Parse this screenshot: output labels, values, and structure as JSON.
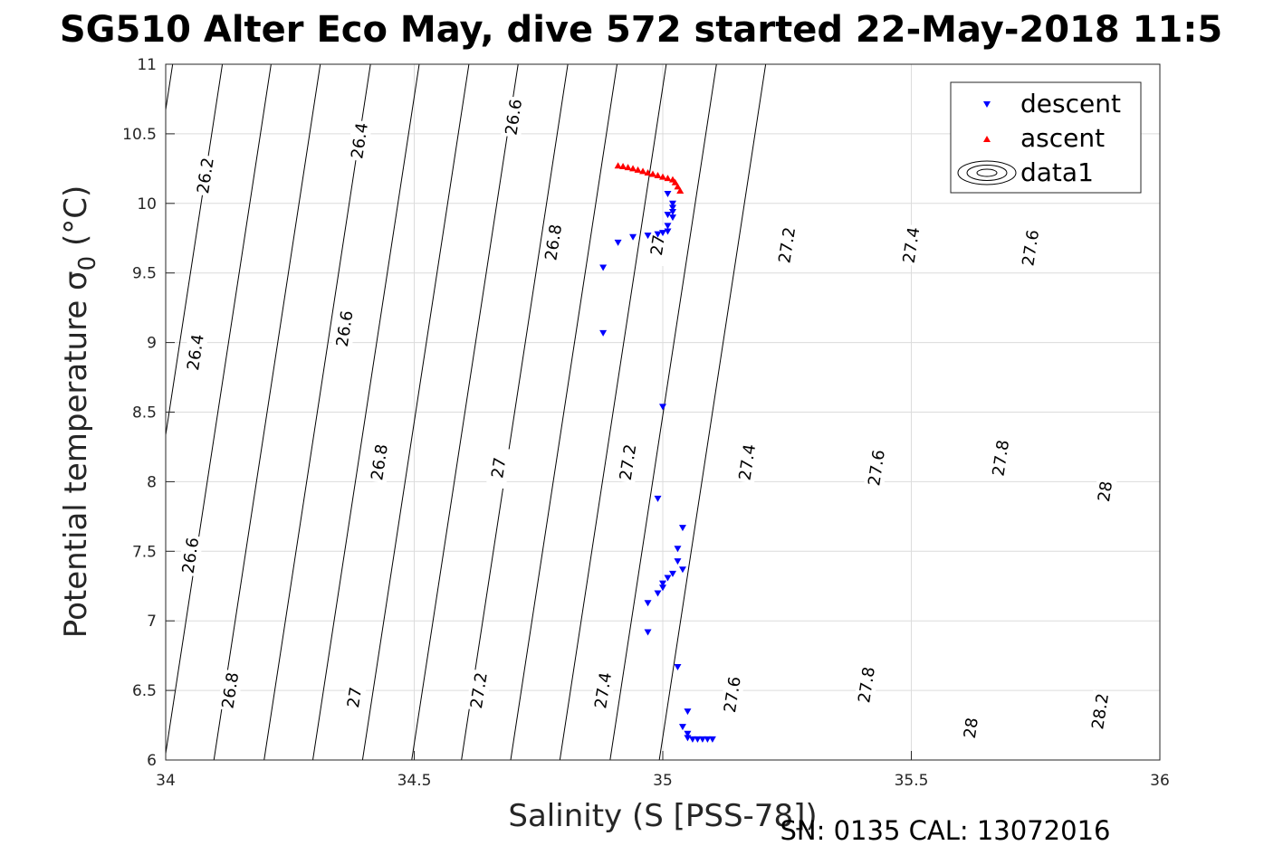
{
  "title": "SG510 Alter Eco May, dive 572 started 22-May-2018 11:5",
  "footer": "SN: 0135  CAL: 13072016",
  "chart_data": {
    "type": "scatter",
    "xlabel": "Salinity (S [PSS-78])",
    "ylabel_main": "Potential temperature σ",
    "ylabel_sub": "0",
    "ylabel_unit": " (°C)",
    "xlim": [
      34,
      36
    ],
    "ylim": [
      6,
      11
    ],
    "xticks": [
      34,
      34.5,
      35,
      35.5,
      36
    ],
    "xtick_labels": [
      "34",
      "34.5",
      "35",
      "35.5",
      "36"
    ],
    "yticks": [
      6,
      6.5,
      7,
      7.5,
      8,
      8.5,
      9,
      9.5,
      10,
      10.5,
      11
    ],
    "ytick_labels": [
      "6",
      "6.5",
      "7",
      "7.5",
      "8",
      "8.5",
      "9",
      "9.5",
      "10",
      "10.5",
      "11"
    ],
    "grid": true,
    "legend_position": "top-right",
    "legend": [
      "descent",
      "ascent",
      "data1"
    ],
    "series": [
      {
        "name": "descent",
        "color": "#0000ff",
        "marker": "triangle-down",
        "points": [
          [
            34.88,
            9.54
          ],
          [
            34.88,
            9.07
          ],
          [
            34.91,
            9.72
          ],
          [
            34.94,
            9.76
          ],
          [
            34.97,
            9.77
          ],
          [
            34.99,
            9.78
          ],
          [
            35.0,
            9.79
          ],
          [
            35.01,
            9.8
          ],
          [
            35.01,
            9.84
          ],
          [
            35.02,
            9.9
          ],
          [
            35.02,
            9.94
          ],
          [
            35.02,
            10.0
          ],
          [
            35.01,
            10.07
          ],
          [
            35.02,
            9.97
          ],
          [
            35.01,
            9.92
          ],
          [
            35.0,
            8.54
          ],
          [
            34.99,
            7.88
          ],
          [
            35.04,
            7.67
          ],
          [
            35.03,
            7.52
          ],
          [
            35.03,
            7.43
          ],
          [
            35.04,
            7.37
          ],
          [
            35.02,
            7.34
          ],
          [
            35.01,
            7.31
          ],
          [
            35.0,
            7.27
          ],
          [
            35.0,
            7.24
          ],
          [
            34.99,
            7.2
          ],
          [
            34.97,
            7.13
          ],
          [
            34.97,
            6.92
          ],
          [
            35.03,
            6.67
          ],
          [
            35.05,
            6.35
          ],
          [
            35.04,
            6.24
          ],
          [
            35.05,
            6.19
          ],
          [
            35.05,
            6.16
          ],
          [
            35.06,
            6.15
          ],
          [
            35.07,
            6.15
          ],
          [
            35.08,
            6.15
          ],
          [
            35.09,
            6.15
          ],
          [
            35.1,
            6.15
          ]
        ]
      },
      {
        "name": "ascent",
        "color": "#ff0000",
        "marker": "triangle-up",
        "points": [
          [
            34.91,
            10.27
          ],
          [
            34.92,
            10.265
          ],
          [
            34.93,
            10.258
          ],
          [
            34.94,
            10.25
          ],
          [
            34.95,
            10.24
          ],
          [
            34.96,
            10.23
          ],
          [
            34.97,
            10.22
          ],
          [
            34.98,
            10.21
          ],
          [
            34.99,
            10.2
          ],
          [
            35.0,
            10.19
          ],
          [
            35.01,
            10.18
          ],
          [
            35.02,
            10.17
          ],
          [
            35.025,
            10.15
          ],
          [
            35.03,
            10.12
          ],
          [
            35.035,
            10.09
          ]
        ]
      }
    ],
    "contour_levels": [
      {
        "level": 26.2,
        "label": "26.2",
        "x0": 33.998,
        "label_at": 26.2
      },
      {
        "level": 26.4,
        "label": "26.4",
        "x0": 34.097
      },
      {
        "level": 26.6,
        "label": "26.6",
        "x0": 34.198
      },
      {
        "level": 26.8,
        "label": "26.8",
        "x0": 34.296
      },
      {
        "level": 27.0,
        "label": "27",
        "x0": 34.396
      },
      {
        "level": 27.2,
        "label": "27.2",
        "x0": 34.495
      },
      {
        "level": 27.4,
        "label": "27.4",
        "x0": 34.595
      },
      {
        "level": 27.6,
        "label": "27.6",
        "x0": 34.694
      },
      {
        "level": 27.8,
        "label": "27.8",
        "x0": 34.793
      },
      {
        "level": 28.0,
        "label": "28",
        "x0": 34.894
      },
      {
        "level": 28.2,
        "label": "28.2",
        "x0": 34.993
      }
    ],
    "contour_label_positions": [
      {
        "text": "26.2",
        "x": 34.08,
        "y": 10.2
      },
      {
        "text": "26.4",
        "x": 34.39,
        "y": 10.45
      },
      {
        "text": "26.6",
        "x": 34.7,
        "y": 10.62
      },
      {
        "text": "26.4",
        "x": 34.06,
        "y": 8.93
      },
      {
        "text": "26.6",
        "x": 34.36,
        "y": 9.1
      },
      {
        "text": "26.8",
        "x": 34.78,
        "y": 9.72
      },
      {
        "text": "27",
        "x": 34.99,
        "y": 9.7
      },
      {
        "text": "27.2",
        "x": 35.25,
        "y": 9.7
      },
      {
        "text": "27.4",
        "x": 35.5,
        "y": 9.7
      },
      {
        "text": "27.6",
        "x": 35.74,
        "y": 9.68
      },
      {
        "text": "26.6",
        "x": 34.05,
        "y": 7.47
      },
      {
        "text": "26.8",
        "x": 34.43,
        "y": 8.14
      },
      {
        "text": "27",
        "x": 34.67,
        "y": 8.1
      },
      {
        "text": "27.2",
        "x": 34.93,
        "y": 8.14
      },
      {
        "text": "27.4",
        "x": 35.17,
        "y": 8.14
      },
      {
        "text": "27.6",
        "x": 35.43,
        "y": 8.1
      },
      {
        "text": "27.8",
        "x": 35.68,
        "y": 8.17
      },
      {
        "text": "28",
        "x": 35.89,
        "y": 7.93
      },
      {
        "text": "26.8",
        "x": 34.13,
        "y": 6.5
      },
      {
        "text": "27",
        "x": 34.38,
        "y": 6.45
      },
      {
        "text": "27.2",
        "x": 34.63,
        "y": 6.5
      },
      {
        "text": "27.4",
        "x": 34.88,
        "y": 6.5
      },
      {
        "text": "27.6",
        "x": 35.14,
        "y": 6.47
      },
      {
        "text": "27.8",
        "x": 35.41,
        "y": 6.54
      },
      {
        "text": "28",
        "x": 35.62,
        "y": 6.23
      },
      {
        "text": "28.2",
        "x": 35.88,
        "y": 6.35
      }
    ]
  }
}
